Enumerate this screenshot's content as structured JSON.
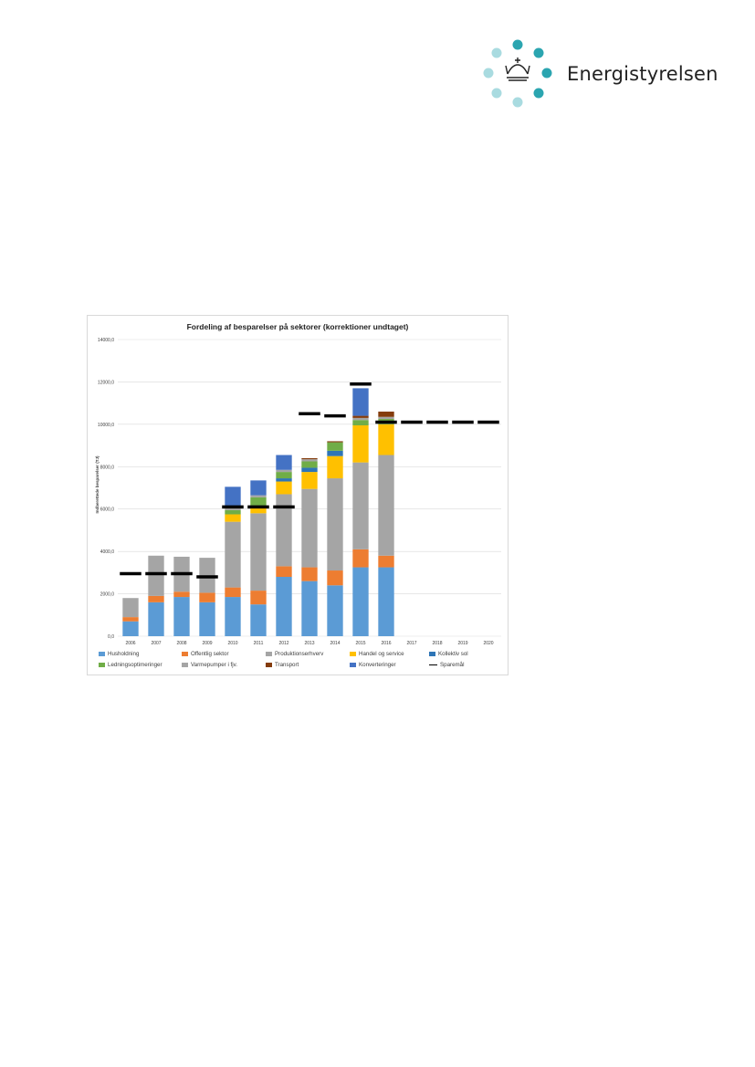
{
  "brand": {
    "name": "Energistyrelsen",
    "dot_colors": [
      "#2ba5b0",
      "#a9dbe0"
    ],
    "logo": "crown-icon"
  },
  "chart_data": {
    "type": "bar",
    "stacked": true,
    "title": "Fordeling af besparelser på sektorer (korrektioner undtaget)",
    "ylabel": "Indberettede besparelser (TJ)",
    "xlabel": "",
    "ylim": [
      0,
      14000
    ],
    "ytick_step": 2000,
    "yticks": [
      "0,0",
      "2000,0",
      "4000,0",
      "6000,0",
      "8000,0",
      "10000,0",
      "12000,0",
      "14000,0"
    ],
    "grid": true,
    "legend_position": "bottom",
    "categories": [
      "2006",
      "2007",
      "2008",
      "2009",
      "2010",
      "2011",
      "2012",
      "2013",
      "2014",
      "2015",
      "2016",
      "2017",
      "2018",
      "2019",
      "2020"
    ],
    "series": [
      {
        "name": "Husholdning",
        "color": "#5b9bd5",
        "values": [
          700,
          1600,
          1850,
          1600,
          1850,
          1500,
          2800,
          2600,
          2400,
          3250,
          3250,
          0,
          0,
          0,
          0
        ]
      },
      {
        "name": "Offentlig sektor",
        "color": "#ed7d31",
        "values": [
          200,
          300,
          250,
          450,
          450,
          650,
          500,
          650,
          700,
          850,
          550,
          0,
          0,
          0,
          0
        ]
      },
      {
        "name": "Produktionserhverv",
        "color": "#a5a5a5",
        "values": [
          900,
          1900,
          1650,
          1650,
          3100,
          3650,
          3400,
          3700,
          4350,
          4100,
          4750,
          0,
          0,
          0,
          0
        ]
      },
      {
        "name": "Handel og service",
        "color": "#ffc000",
        "values": [
          0,
          0,
          0,
          0,
          350,
          350,
          600,
          800,
          1050,
          1750,
          1450,
          0,
          0,
          0,
          0
        ]
      },
      {
        "name": "Kollektiv sol",
        "color": "#2e75b6",
        "values": [
          0,
          0,
          0,
          0,
          0,
          0,
          150,
          200,
          250,
          0,
          0,
          0,
          0,
          0,
          0
        ]
      },
      {
        "name": "Ledningsoptimeringer",
        "color": "#70ad47",
        "values": [
          0,
          0,
          0,
          0,
          200,
          400,
          300,
          300,
          400,
          250,
          250,
          0,
          0,
          0,
          0
        ]
      },
      {
        "name": "Varmepumper i fjv.",
        "color": "#a5a5a5",
        "values": [
          0,
          0,
          0,
          0,
          100,
          100,
          100,
          100,
          0,
          100,
          100,
          0,
          0,
          0,
          0
        ]
      },
      {
        "name": "Transport",
        "color": "#843c0c",
        "values": [
          0,
          0,
          0,
          0,
          0,
          0,
          0,
          50,
          50,
          100,
          250,
          0,
          0,
          0,
          0
        ]
      },
      {
        "name": "Konverteringer",
        "color": "#4472c4",
        "values": [
          0,
          0,
          0,
          0,
          1000,
          700,
          700,
          0,
          0,
          1300,
          0,
          0,
          0,
          0,
          0
        ]
      }
    ],
    "target": {
      "name": "Sparemål",
      "color": "#000000",
      "values": [
        2950,
        2950,
        2950,
        2800,
        6100,
        6100,
        6100,
        10500,
        10400,
        11900,
        10100,
        10100,
        10100,
        10100,
        10100
      ]
    }
  }
}
